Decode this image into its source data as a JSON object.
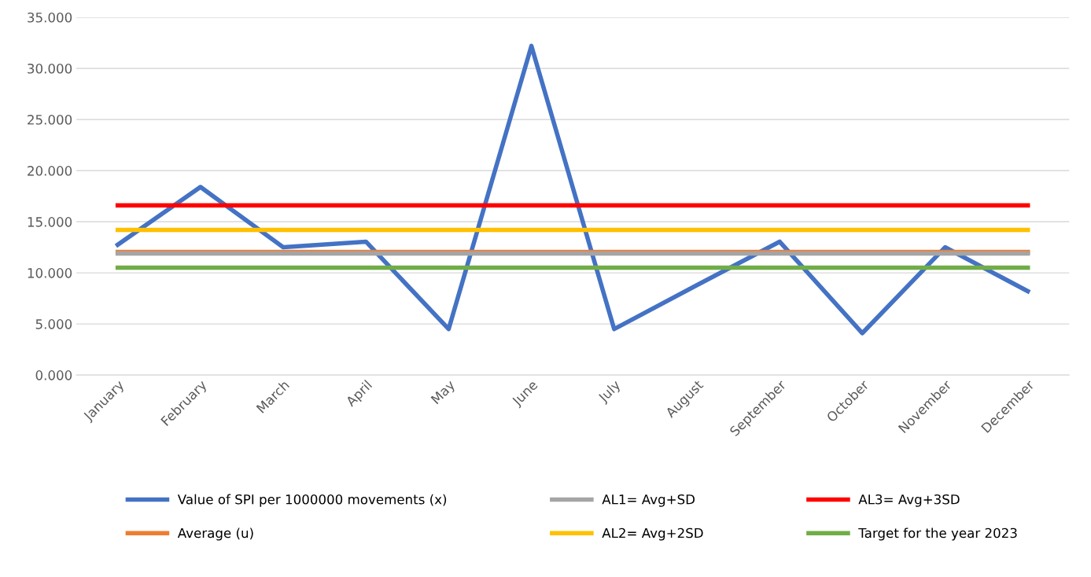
{
  "chart_data": {
    "type": "line",
    "categories": [
      "January",
      "February",
      "March",
      "April",
      "May",
      "June",
      "July",
      "August",
      "September",
      "October",
      "November",
      "December"
    ],
    "series": [
      {
        "name": "Value of SPI per 1000000 movements (x)",
        "color": "#4472c4",
        "values": [
          12.75,
          18.4,
          12.5,
          13.05,
          4.5,
          32.2,
          4.5,
          8.8,
          13.05,
          4.1,
          12.5,
          8.2
        ]
      },
      {
        "name": "Average (u)",
        "color": "#ed7d31",
        "values": [
          12.05,
          12.05,
          12.05,
          12.05,
          12.05,
          12.05,
          12.05,
          12.05,
          12.05,
          12.05,
          12.05,
          12.05
        ]
      },
      {
        "name": "AL1= Avg+SD",
        "color": "#a5a5a5",
        "values": [
          11.9,
          11.9,
          11.9,
          11.9,
          11.9,
          11.9,
          11.9,
          11.9,
          11.9,
          11.9,
          11.9,
          11.9
        ]
      },
      {
        "name": "AL2= Avg+2SD",
        "color": "#ffc000",
        "values": [
          14.2,
          14.2,
          14.2,
          14.2,
          14.2,
          14.2,
          14.2,
          14.2,
          14.2,
          14.2,
          14.2,
          14.2
        ]
      },
      {
        "name": "AL3= Avg+3SD",
        "color": "#ff0000",
        "values": [
          16.6,
          16.6,
          16.6,
          16.6,
          16.6,
          16.6,
          16.6,
          16.6,
          16.6,
          16.6,
          16.6,
          16.6
        ]
      },
      {
        "name": "Target for the year 2023",
        "color": "#70ad47",
        "values": [
          10.5,
          10.5,
          10.5,
          10.5,
          10.5,
          10.5,
          10.5,
          10.5,
          10.5,
          10.5,
          10.5,
          10.5
        ]
      }
    ],
    "ylim": [
      0,
      35
    ],
    "yticks": [
      {
        "value": 0,
        "label": "0.000"
      },
      {
        "value": 5,
        "label": "5.000"
      },
      {
        "value": 10,
        "label": "10.000"
      },
      {
        "value": 15,
        "label": "15.000"
      },
      {
        "value": 20,
        "label": "20.000"
      },
      {
        "value": 25,
        "label": "25.000"
      },
      {
        "value": 30,
        "label": "30.000"
      },
      {
        "value": 35,
        "label": "35.000"
      }
    ],
    "grid": "y",
    "legend": "bottom",
    "marker": "none",
    "line_style": "solid"
  }
}
